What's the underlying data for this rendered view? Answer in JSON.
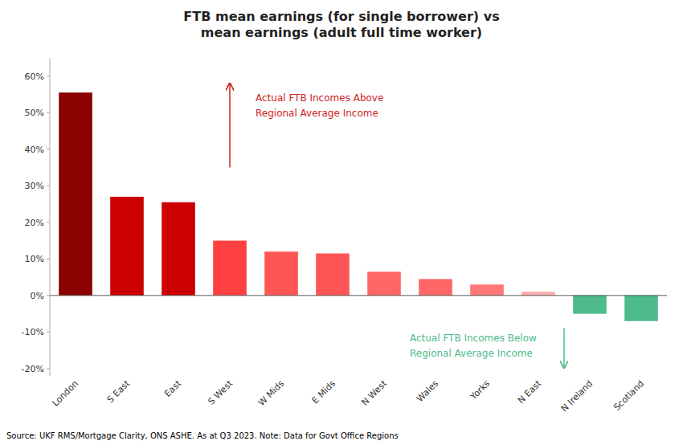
{
  "chart_data": {
    "type": "bar",
    "title": "FTB mean earnings (for single borrower) vs\nmean earnings (adult full time worker)",
    "categories": [
      "London",
      "S East",
      "East",
      "S West",
      "W Mids",
      "E Mids",
      "N West",
      "Wales",
      "Yorks",
      "N East",
      "N Ireland",
      "Scotland"
    ],
    "values": [
      55.5,
      27.0,
      25.5,
      15.0,
      12.0,
      11.5,
      6.5,
      4.5,
      3.0,
      1.0,
      -5.0,
      -7.0
    ],
    "colors": [
      "#8b0000",
      "#cc0000",
      "#cc0000",
      "#ff4040",
      "#ff5555",
      "#ff5555",
      "#ff6666",
      "#ff6666",
      "#ff7777",
      "#ffaaaa",
      "#4dbb8a",
      "#4dbb8a"
    ],
    "ylim": [
      -22,
      65
    ],
    "yticks": [
      {
        "value": -20,
        "label": "-20%"
      },
      {
        "value": -10,
        "label": "-10%"
      },
      {
        "value": 0,
        "label": "0%"
      },
      {
        "value": 10,
        "label": "10%"
      },
      {
        "value": 20,
        "label": "20%"
      },
      {
        "value": 30,
        "label": "30%"
      },
      {
        "value": 40,
        "label": "40%"
      },
      {
        "value": 50,
        "label": "50%"
      },
      {
        "value": 60,
        "label": "60%"
      }
    ],
    "grid": false,
    "annotations": [
      {
        "text": "Actual FTB Incomes Above\nRegional Average Income",
        "color": "#cc2222"
      },
      {
        "text": "Actual FTB Incomes Below\nRegional Average Income",
        "color": "#4dbb8a"
      }
    ],
    "source": "Source: UKF RMS/Mortgage Clarity, ONS ASHE. As at Q3 2023. Note: Data for Govt Office Regions"
  }
}
